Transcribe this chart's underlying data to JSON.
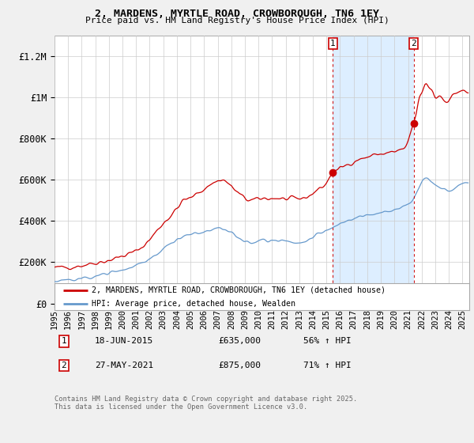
{
  "title": "2, MARDENS, MYRTLE ROAD, CROWBOROUGH, TN6 1EY",
  "subtitle": "Price paid vs. HM Land Registry's House Price Index (HPI)",
  "background_color": "#f0f0f0",
  "plot_bg_color": "#ffffff",
  "red_line_color": "#cc0000",
  "blue_line_color": "#6699cc",
  "shade_color": "#ddeeff",
  "grid_color": "#cccccc",
  "ylim": [
    0,
    1300000
  ],
  "yticks": [
    0,
    200000,
    400000,
    600000,
    800000,
    1000000,
    1200000
  ],
  "ytick_labels": [
    "£0",
    "£200K",
    "£400K",
    "£600K",
    "£800K",
    "£1M",
    "£1.2M"
  ],
  "xlim_start": 1995,
  "xlim_end": 2025.5,
  "sale1_year": 2015.46,
  "sale1_price": 635000,
  "sale1_label": "1",
  "sale1_date": "18-JUN-2015",
  "sale1_pct": "56% ↑ HPI",
  "sale2_year": 2021.41,
  "sale2_price": 875000,
  "sale2_label": "2",
  "sale2_date": "27-MAY-2021",
  "sale2_pct": "71% ↑ HPI",
  "legend_entry1": "2, MARDENS, MYRTLE ROAD, CROWBOROUGH, TN6 1EY (detached house)",
  "legend_entry2": "HPI: Average price, detached house, Wealden",
  "footer": "Contains HM Land Registry data © Crown copyright and database right 2025.\nThis data is licensed under the Open Government Licence v3.0."
}
